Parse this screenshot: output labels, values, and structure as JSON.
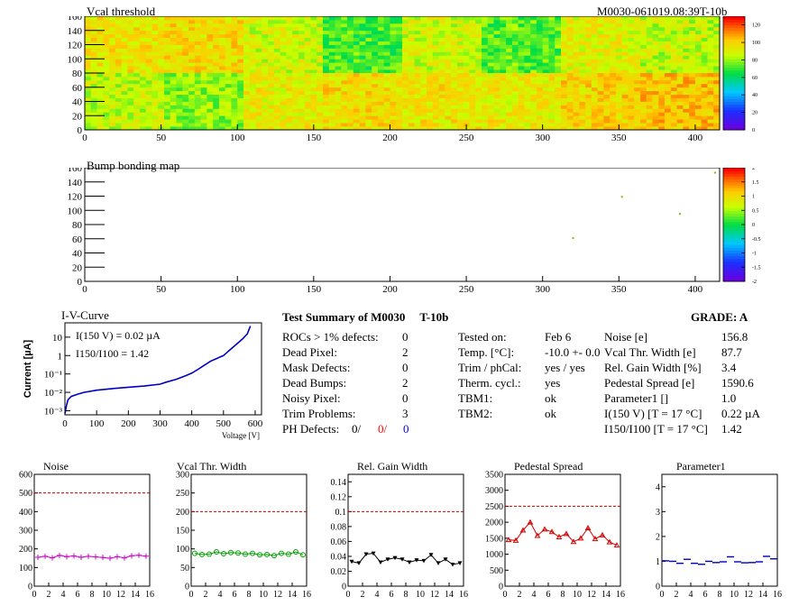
{
  "header": {
    "vcal_title": "Vcal threshold",
    "module_id": "M0030-061019.08:39T-10b",
    "bump_title": "Bump bonding map"
  },
  "colors": {
    "frame": "#000000",
    "noise_series": "#d000d0",
    "vcal_series": "#00a000",
    "gain_series": "#000000",
    "pedestal_series": "#d00000",
    "param_series": "#0000c0",
    "iv_series": "#0000c0",
    "limit_line": "#c00000",
    "defects_red": "#ff0000",
    "defects_blue": "#0000ff"
  },
  "summary": {
    "title": "Test Summary of M0030",
    "variant": "T-10b",
    "grade_label": "GRADE:",
    "grade": "A",
    "rows": [
      {
        "label": "ROCs > 1% defects:",
        "value": "0"
      },
      {
        "label": "Dead Pixel:",
        "value": "2"
      },
      {
        "label": "Mask Defects:",
        "value": "0"
      },
      {
        "label": "Dead Bumps:",
        "value": "2"
      },
      {
        "label": "Noisy Pixel:",
        "value": "0"
      },
      {
        "label": "Trim Problems:",
        "value": "3"
      }
    ],
    "ph_label": "PH Defects:",
    "ph_values": [
      "0/",
      "0/",
      "0"
    ],
    "test_rows": [
      {
        "label": "Tested on:",
        "value": "Feb 6"
      },
      {
        "label": "Temp. [°C]:",
        "value": "-10.0 +- 0.0"
      },
      {
        "label": "Trim / phCal:",
        "value": "yes / yes"
      },
      {
        "label": "Therm. cycl.:",
        "value": "yes"
      },
      {
        "label": "TBM1:",
        "value": "ok"
      },
      {
        "label": "TBM2:",
        "value": "ok"
      }
    ],
    "result_rows": [
      {
        "label": "Noise [e]",
        "value": "156.8"
      },
      {
        "label": "Vcal Thr. Width [e]",
        "value": "87.7"
      },
      {
        "label": "Rel. Gain Width [%]",
        "value": "3.4"
      },
      {
        "label": "Pedestal Spread [e]",
        "value": "1590.6"
      },
      {
        "label": "Parameter1 []",
        "value": "1.0"
      },
      {
        "label": "I(150 V) [T = 17 °C]",
        "value": "0.22 µA"
      },
      {
        "label": "I150/I100 [T = 17 °C]",
        "value": "1.42"
      }
    ]
  },
  "chart_data": [
    {
      "type": "heatmap",
      "title": "Vcal threshold",
      "xlim": [
        0,
        416
      ],
      "ylim": [
        0,
        160
      ],
      "x_ticks": [
        0,
        50,
        100,
        150,
        200,
        250,
        300,
        350,
        400
      ],
      "y_ticks": [
        0,
        20,
        40,
        60,
        80,
        100,
        120,
        140,
        160
      ],
      "colorbar": {
        "min": 0,
        "max": 130,
        "ticks": [
          0,
          20,
          40,
          60,
          80,
          100,
          120
        ]
      },
      "roc_mean_levels": {
        "top_row": [
          96,
          98,
          88,
          72,
          88,
          74,
          92,
          86
        ],
        "bottom_row": [
          86,
          80,
          94,
          98,
          96,
          94,
          100,
          104
        ]
      }
    },
    {
      "type": "scatter",
      "title": "Bump bonding map",
      "xlim": [
        0,
        416
      ],
      "ylim": [
        0,
        160
      ],
      "x_ticks": [
        0,
        50,
        100,
        150,
        200,
        250,
        300,
        350,
        400
      ],
      "y_ticks": [
        0,
        20,
        40,
        60,
        80,
        100,
        120,
        140,
        160
      ],
      "colorbar": {
        "min": -2,
        "max": 2,
        "ticks": [
          -2,
          -1.5,
          -1,
          -0.5,
          0,
          0.5,
          1,
          1.5,
          2
        ]
      },
      "points": [
        {
          "x": 413,
          "y": 153
        },
        {
          "x": 352,
          "y": 119
        },
        {
          "x": 390,
          "y": 95
        },
        {
          "x": 320,
          "y": 61
        }
      ]
    },
    {
      "type": "line",
      "title": "I-V-Curve",
      "xlabel": "Voltage [V]",
      "ylabel": "Current [µA]",
      "log_y": true,
      "xlim": [
        0,
        620
      ],
      "ylim": [
        0.0006,
        60
      ],
      "x_ticks": [
        0,
        100,
        200,
        300,
        400,
        500,
        600
      ],
      "y_ticks": [
        {
          "v": 0.001,
          "label": "10⁻³"
        },
        {
          "v": 0.01,
          "label": "10⁻²"
        },
        {
          "v": 0.1,
          "label": "10⁻¹"
        },
        {
          "v": 1,
          "label": "1"
        },
        {
          "v": 10,
          "label": "10"
        }
      ],
      "annotations": [
        "I(150 V) = 0.02 µA",
        "I150/I100 = 1.42"
      ],
      "x": [
        0,
        5,
        10,
        20,
        40,
        60,
        100,
        150,
        200,
        250,
        300,
        320,
        350,
        380,
        400,
        420,
        440,
        460,
        480,
        490,
        500,
        520,
        540,
        560,
        575,
        585
      ],
      "y": [
        0.0007,
        0.002,
        0.004,
        0.006,
        0.008,
        0.01,
        0.013,
        0.016,
        0.019,
        0.022,
        0.028,
        0.036,
        0.05,
        0.08,
        0.11,
        0.18,
        0.3,
        0.5,
        0.7,
        0.85,
        1.0,
        2.0,
        4.0,
        8.0,
        15,
        40
      ]
    },
    {
      "type": "line",
      "title": "Noise",
      "xlim": [
        0,
        16
      ],
      "ylim": [
        0,
        600
      ],
      "x_ticks": [
        0,
        2,
        4,
        6,
        8,
        10,
        12,
        14,
        16
      ],
      "y_ticks": [
        0,
        100,
        200,
        300,
        400,
        500,
        600
      ],
      "limit": 500,
      "x": [
        0.5,
        1.5,
        2.5,
        3.5,
        4.5,
        5.5,
        6.5,
        7.5,
        8.5,
        9.5,
        10.5,
        11.5,
        12.5,
        13.5,
        14.5,
        15.5
      ],
      "y": [
        155,
        160,
        152,
        165,
        158,
        162,
        155,
        160,
        157,
        154,
        150,
        158,
        152,
        163,
        166,
        161
      ]
    },
    {
      "type": "line",
      "title": "Vcal Thr. Width",
      "xlim": [
        0,
        16
      ],
      "ylim": [
        0,
        300
      ],
      "x_ticks": [
        0,
        2,
        4,
        6,
        8,
        10,
        12,
        14,
        16
      ],
      "y_ticks": [
        0,
        50,
        100,
        150,
        200,
        250,
        300
      ],
      "limit": 200,
      "x": [
        0.5,
        1.5,
        2.5,
        3.5,
        4.5,
        5.5,
        6.5,
        7.5,
        8.5,
        9.5,
        10.5,
        11.5,
        12.5,
        13.5,
        14.5,
        15.5
      ],
      "y": [
        88,
        85,
        86,
        92,
        87,
        90,
        89,
        86,
        88,
        84,
        85,
        82,
        88,
        86,
        92,
        84
      ]
    },
    {
      "type": "line",
      "title": "Rel. Gain Width",
      "xlim": [
        0,
        16
      ],
      "ylim": [
        0,
        0.15
      ],
      "x_ticks": [
        0,
        2,
        4,
        6,
        8,
        10,
        12,
        14,
        16
      ],
      "y_ticks": [
        0,
        0.02,
        0.04,
        0.06,
        0.08,
        0.1,
        0.12,
        0.14
      ],
      "limit": 0.1,
      "x": [
        0.5,
        1.5,
        2.5,
        3.5,
        4.5,
        5.5,
        6.5,
        7.5,
        8.5,
        9.5,
        10.5,
        11.5,
        12.5,
        13.5,
        14.5,
        15.5
      ],
      "y": [
        0.033,
        0.031,
        0.043,
        0.044,
        0.032,
        0.036,
        0.038,
        0.036,
        0.032,
        0.035,
        0.034,
        0.042,
        0.031,
        0.036,
        0.029,
        0.031
      ]
    },
    {
      "type": "line",
      "title": "Pedestal Spread",
      "xlim": [
        0,
        16
      ],
      "ylim": [
        0,
        3500
      ],
      "x_ticks": [
        0,
        2,
        4,
        6,
        8,
        10,
        12,
        14,
        16
      ],
      "y_ticks": [
        0,
        500,
        1000,
        1500,
        2000,
        2500,
        3000,
        3500
      ],
      "limit": 2500,
      "x": [
        0.5,
        1.5,
        2.5,
        3.5,
        4.5,
        5.5,
        6.5,
        7.5,
        8.5,
        9.5,
        10.5,
        11.5,
        12.5,
        13.5,
        14.5,
        15.5
      ],
      "y": [
        1450,
        1430,
        1750,
        2000,
        1580,
        1780,
        1700,
        1540,
        1640,
        1390,
        1500,
        1820,
        1480,
        1600,
        1380,
        1280
      ]
    },
    {
      "type": "line",
      "title": "Parameter1",
      "xlim": [
        0,
        16
      ],
      "ylim": [
        0,
        4.5
      ],
      "x_ticks": [
        0,
        2,
        4,
        6,
        8,
        10,
        12,
        14,
        16
      ],
      "y_ticks": [
        0,
        1,
        2,
        3,
        4
      ],
      "limit": null,
      "x": [
        0.5,
        1.5,
        2.5,
        3.5,
        4.5,
        5.5,
        6.5,
        7.5,
        8.5,
        9.5,
        10.5,
        11.5,
        12.5,
        13.5,
        14.5,
        15.5
      ],
      "y": [
        1.02,
        1.0,
        0.92,
        1.08,
        0.92,
        0.88,
        1.0,
        0.95,
        0.98,
        1.18,
        0.98,
        0.94,
        0.95,
        0.98,
        1.2,
        1.1
      ]
    }
  ]
}
